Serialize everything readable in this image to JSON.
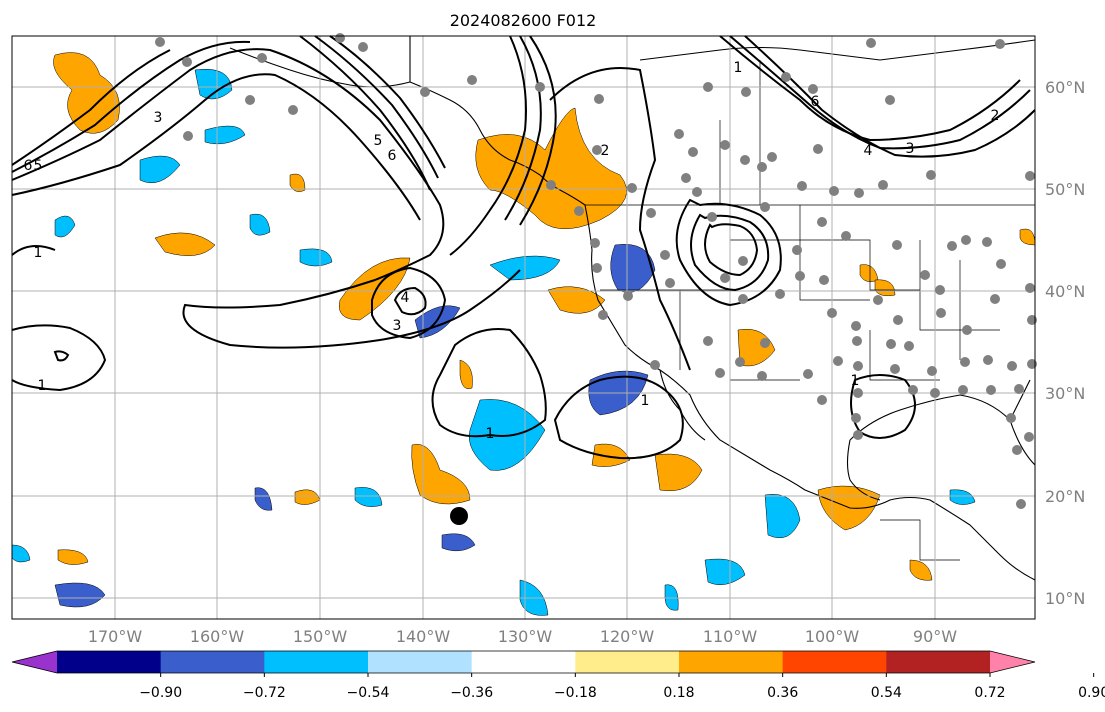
{
  "title": "2024082600 F012",
  "map": {
    "lon_labels": [
      "170°W",
      "160°W",
      "150°W",
      "140°W",
      "130°W",
      "120°W",
      "110°W",
      "100°W",
      "90°W"
    ],
    "lat_labels": [
      "60°N",
      "50°N",
      "40°N",
      "30°N",
      "20°N",
      "10°N"
    ],
    "contour_labels": [
      "1",
      "2",
      "3",
      "4",
      "5",
      "6"
    ]
  },
  "colorbar": {
    "ticks": [
      "−0.90",
      "−0.72",
      "−0.54",
      "−0.36",
      "−0.18",
      "0.18",
      "0.36",
      "0.54",
      "0.72",
      "0.90"
    ],
    "colors": [
      "#9a32cd",
      "#00008b",
      "#3a5fcd",
      "#00bfff",
      "#b0e2ff",
      "#ffffff",
      "#ffec8b",
      "#ffa500",
      "#ff4500",
      "#b22222",
      "#ff82ab"
    ]
  },
  "colors": {
    "land_line": "#000000",
    "grid": "#b0b0b0",
    "station": "#808080",
    "marker": "#000000"
  }
}
